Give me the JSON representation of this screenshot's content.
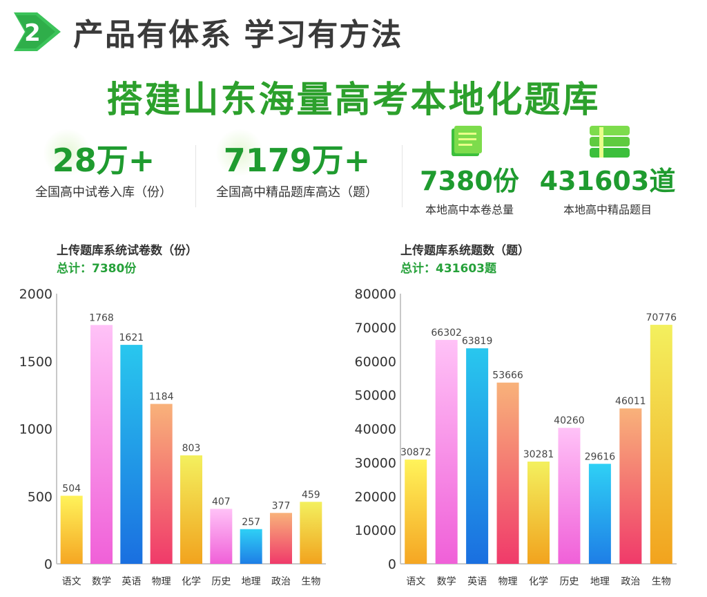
{
  "section": {
    "number": "2",
    "title": "产品有体系 学习有方法"
  },
  "main_title": "搭建山东海量高考本地化题库",
  "stats": [
    {
      "value": "28万+",
      "label": "全国高中试卷入库（份）"
    },
    {
      "value": "7179万+",
      "label": "全国高中精品题库高达（题）"
    },
    {
      "value": "7380份",
      "label": "本地高中本卷总量"
    },
    {
      "value": "431603道",
      "label": "本地高中精品题目"
    }
  ],
  "icons": {
    "paper": "paper-scroll-icon",
    "books": "book-stack-icon"
  },
  "colors": {
    "green": "#2ca02c",
    "axis": "#c8c8c8"
  },
  "chart_data": [
    {
      "type": "bar",
      "title": "上传题库系统试卷数（份）",
      "subtitle": "总计：7380份",
      "categories": [
        "语文",
        "数学",
        "英语",
        "物理",
        "化学",
        "历史",
        "地理",
        "政治",
        "生物"
      ],
      "values": [
        504,
        1768,
        1621,
        1184,
        803,
        407,
        257,
        377,
        459
      ],
      "ylim": [
        0,
        2000
      ],
      "yticks": [
        0,
        500,
        1000,
        1500,
        2000
      ],
      "xlabel": "",
      "ylabel": ""
    },
    {
      "type": "bar",
      "title": "上传题库系统题数（题）",
      "subtitle": "总计：431603题",
      "categories": [
        "语文",
        "数学",
        "英语",
        "物理",
        "化学",
        "历史",
        "地理",
        "政治",
        "生物"
      ],
      "values": [
        30872,
        66302,
        63819,
        53666,
        30281,
        40260,
        29616,
        46011,
        70776
      ],
      "ylim": [
        0,
        80000
      ],
      "yticks": [
        0,
        10000,
        20000,
        30000,
        40000,
        50000,
        60000,
        70000,
        80000
      ],
      "xlabel": "",
      "ylabel": ""
    }
  ]
}
